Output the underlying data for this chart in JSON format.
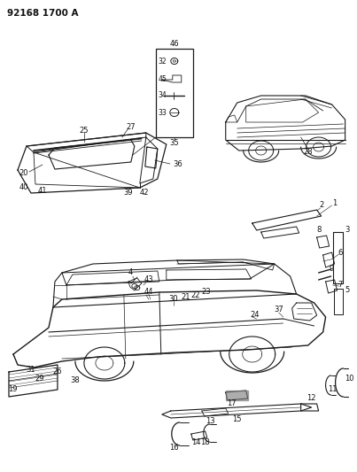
{
  "title_text": "92168 1700 A",
  "bg_color": "#ffffff",
  "line_color": "#1a1a1a",
  "text_color": "#111111",
  "fig_width": 4.03,
  "fig_height": 5.33,
  "dpi": 100
}
